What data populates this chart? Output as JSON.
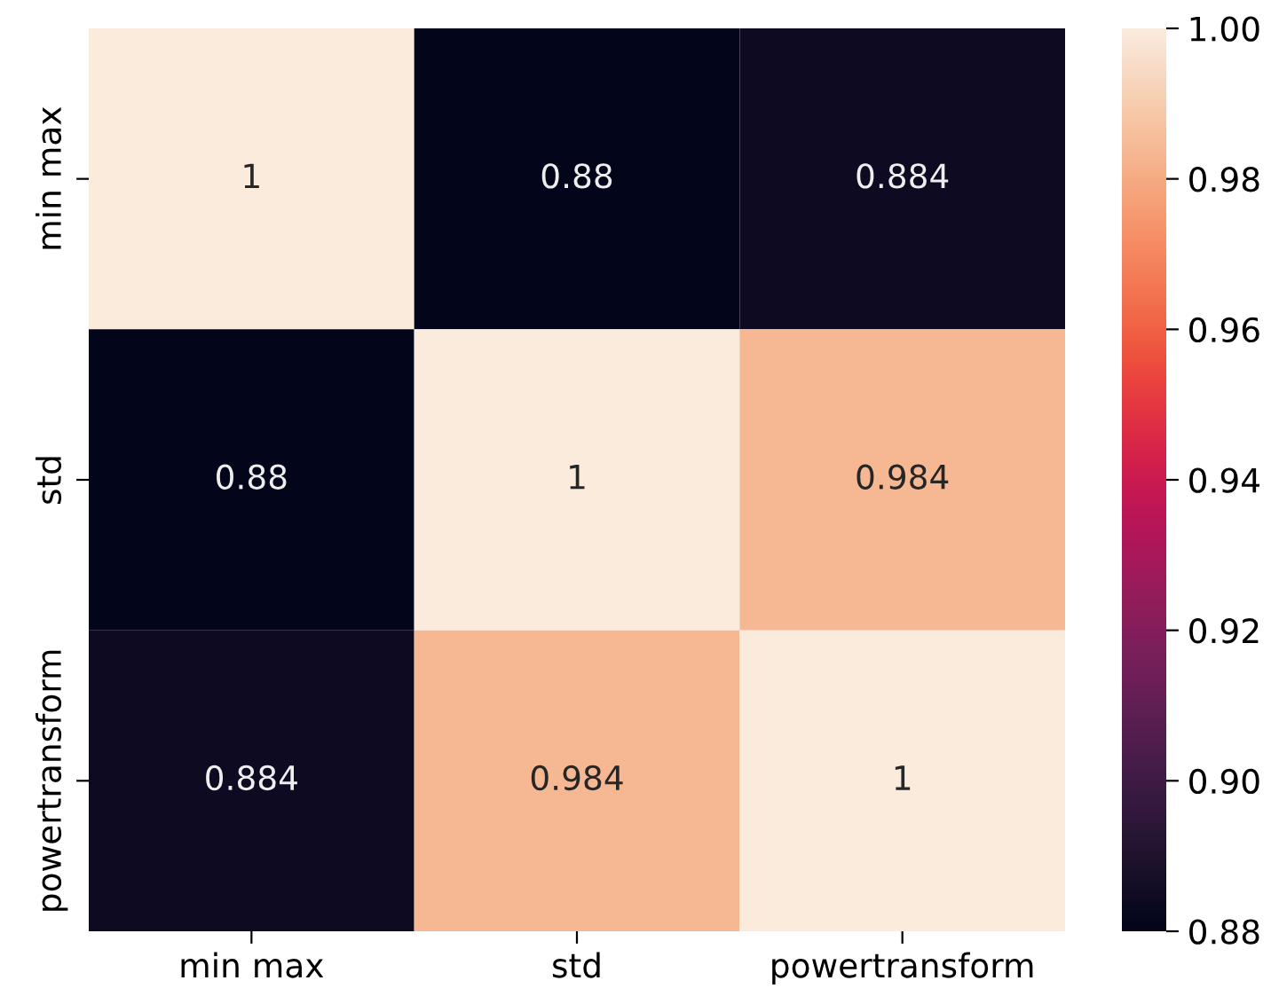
{
  "chart_data": {
    "type": "heatmap",
    "categories": [
      "min max",
      "std",
      "powertransform"
    ],
    "y_categories": [
      "min max",
      "std",
      "powertransform"
    ],
    "cells": [
      [
        1,
        0.88,
        0.884
      ],
      [
        0.88,
        1,
        0.984
      ],
      [
        0.884,
        0.984,
        1
      ]
    ],
    "data_labels": true,
    "clim": [
      0.88,
      1.0
    ],
    "cticks": [
      0.88,
      {
        "value": 0.9,
        "label": "0.90"
      },
      0.92,
      0.94,
      0.96,
      0.98,
      {
        "value": 1.0,
        "label": "1.00"
      }
    ]
  }
}
